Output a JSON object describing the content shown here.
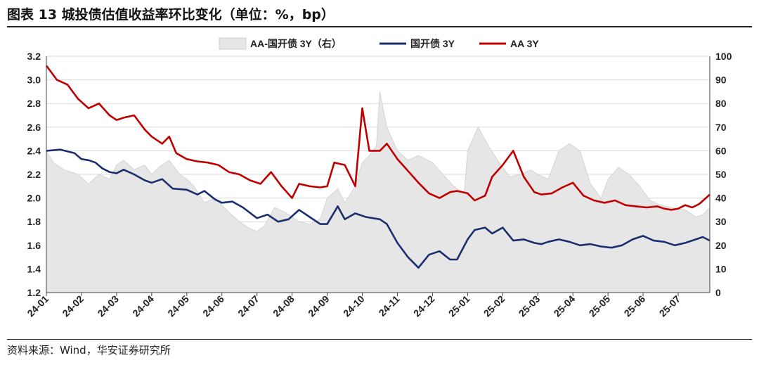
{
  "title": "图表 13 城投债估值收益率环比变化（单位：%，bp）",
  "source": "资料来源：Wind，华安证券研究所",
  "chart_data": {
    "type": "line",
    "legend_position": "top",
    "grid": true,
    "x_ticks": [
      "24-01",
      "24-02",
      "24-03",
      "24-04",
      "24-05",
      "24-06",
      "24-07",
      "24-08",
      "24-09",
      "24-10",
      "24-11",
      "24-12",
      "25-01",
      "25-02",
      "25-03",
      "25-04",
      "25-05",
      "25-06",
      "25-07"
    ],
    "x_range": [
      0,
      18.9
    ],
    "y_left": {
      "ylim": [
        1.2,
        3.2
      ],
      "ticks": [
        "1.2",
        "1.4",
        "1.6",
        "1.8",
        "2.0",
        "2.2",
        "2.4",
        "2.6",
        "2.8",
        "3.0",
        "3.2"
      ]
    },
    "y_right": {
      "ylim": [
        0,
        100
      ],
      "ticks": [
        "0",
        "10",
        "20",
        "30",
        "40",
        "50",
        "60",
        "70",
        "80",
        "90",
        "100"
      ]
    },
    "series": [
      {
        "name": "AA-国开债 3Y（右）",
        "type": "area",
        "axis": "right",
        "color": "#e6e6e6",
        "x": [
          0,
          0.2,
          0.5,
          0.9,
          1.2,
          1.5,
          1.8,
          2.0,
          2.2,
          2.5,
          2.8,
          3.0,
          3.2,
          3.5,
          3.8,
          4.0,
          4.2,
          4.5,
          4.8,
          5.0,
          5.2,
          5.5,
          5.8,
          6.0,
          6.2,
          6.5,
          6.8,
          7.0,
          7.2,
          7.5,
          7.8,
          8.0,
          8.3,
          8.5,
          8.8,
          9.0,
          9.2,
          9.4,
          9.5,
          9.7,
          10.0,
          10.3,
          10.6,
          11.0,
          11.3,
          11.6,
          11.9,
          12.0,
          12.3,
          12.6,
          12.9,
          13.2,
          13.5,
          13.8,
          14.0,
          14.3,
          14.6,
          14.9,
          15.2,
          15.5,
          15.8,
          16.0,
          16.3,
          16.6,
          16.9,
          17.2,
          17.5,
          17.8,
          18.2,
          18.5,
          18.7,
          18.9
        ],
        "values": [
          60,
          55,
          52,
          50,
          46,
          50,
          48,
          54,
          56,
          52,
          54,
          50,
          53,
          56,
          50,
          48,
          45,
          38,
          40,
          37,
          34,
          30,
          27,
          26,
          28,
          36,
          34,
          32,
          30,
          29,
          31,
          40,
          44,
          38,
          45,
          55,
          58,
          62,
          85,
          70,
          60,
          56,
          58,
          55,
          50,
          45,
          42,
          60,
          70,
          62,
          55,
          49,
          50,
          52,
          50,
          48,
          60,
          63,
          60,
          46,
          40,
          48,
          53,
          50,
          45,
          39,
          37,
          36,
          35,
          32,
          33,
          36
        ]
      },
      {
        "name": "国开债 3Y",
        "type": "line",
        "axis": "left",
        "color": "#1b2f6e",
        "x": [
          0,
          0.4,
          0.8,
          1.0,
          1.2,
          1.4,
          1.6,
          1.8,
          2.0,
          2.2,
          2.5,
          2.8,
          3.0,
          3.3,
          3.6,
          4.0,
          4.3,
          4.5,
          4.8,
          5.0,
          5.3,
          5.6,
          6.0,
          6.3,
          6.6,
          6.9,
          7.2,
          7.5,
          7.8,
          8.0,
          8.3,
          8.5,
          8.8,
          9.1,
          9.3,
          9.5,
          9.7,
          10.0,
          10.3,
          10.6,
          10.9,
          11.2,
          11.5,
          11.7,
          12.0,
          12.2,
          12.5,
          12.7,
          13.0,
          13.3,
          13.6,
          13.9,
          14.1,
          14.3,
          14.6,
          14.9,
          15.2,
          15.5,
          15.8,
          16.1,
          16.4,
          16.7,
          17.0,
          17.3,
          17.6,
          17.9,
          18.2,
          18.5,
          18.7,
          18.9
        ],
        "values": [
          2.4,
          2.41,
          2.38,
          2.33,
          2.32,
          2.3,
          2.25,
          2.22,
          2.21,
          2.24,
          2.2,
          2.15,
          2.13,
          2.16,
          2.08,
          2.07,
          2.03,
          2.06,
          1.99,
          1.96,
          1.97,
          1.92,
          1.83,
          1.86,
          1.8,
          1.82,
          1.9,
          1.84,
          1.78,
          1.78,
          1.93,
          1.82,
          1.87,
          1.84,
          1.83,
          1.82,
          1.78,
          1.62,
          1.5,
          1.41,
          1.52,
          1.55,
          1.48,
          1.48,
          1.65,
          1.73,
          1.75,
          1.7,
          1.75,
          1.64,
          1.65,
          1.62,
          1.61,
          1.63,
          1.65,
          1.63,
          1.6,
          1.61,
          1.59,
          1.58,
          1.6,
          1.65,
          1.68,
          1.64,
          1.63,
          1.6,
          1.62,
          1.65,
          1.67,
          1.64
        ]
      },
      {
        "name": "AA 3Y",
        "type": "line",
        "axis": "left",
        "color": "#c00000",
        "x": [
          0,
          0.3,
          0.6,
          0.9,
          1.2,
          1.5,
          1.8,
          2.0,
          2.2,
          2.5,
          2.8,
          3.0,
          3.3,
          3.5,
          3.7,
          4.0,
          4.3,
          4.6,
          4.9,
          5.2,
          5.5,
          5.8,
          6.1,
          6.4,
          6.7,
          7.0,
          7.2,
          7.5,
          7.8,
          8.0,
          8.2,
          8.5,
          8.8,
          9.0,
          9.2,
          9.5,
          9.7,
          10.0,
          10.3,
          10.6,
          10.9,
          11.2,
          11.5,
          11.7,
          12.0,
          12.2,
          12.5,
          12.7,
          13.0,
          13.3,
          13.6,
          13.9,
          14.1,
          14.4,
          14.7,
          15.0,
          15.3,
          15.6,
          15.9,
          16.2,
          16.5,
          16.8,
          17.1,
          17.4,
          17.6,
          17.8,
          18.0,
          18.2,
          18.4,
          18.6,
          18.9
        ],
        "values": [
          3.12,
          3.0,
          2.96,
          2.84,
          2.76,
          2.8,
          2.7,
          2.66,
          2.68,
          2.7,
          2.58,
          2.52,
          2.46,
          2.52,
          2.38,
          2.33,
          2.31,
          2.3,
          2.28,
          2.22,
          2.2,
          2.15,
          2.12,
          2.22,
          2.1,
          2.0,
          2.12,
          2.1,
          2.09,
          2.1,
          2.3,
          2.28,
          2.1,
          2.76,
          2.4,
          2.4,
          2.46,
          2.33,
          2.23,
          2.13,
          2.04,
          2.0,
          2.05,
          2.06,
          2.04,
          1.98,
          2.02,
          2.18,
          2.28,
          2.4,
          2.18,
          2.05,
          2.03,
          2.04,
          2.09,
          2.13,
          2.02,
          1.98,
          1.96,
          1.98,
          1.94,
          1.93,
          1.92,
          1.93,
          1.91,
          1.9,
          1.91,
          1.94,
          1.92,
          1.95,
          2.03
        ]
      }
    ]
  }
}
